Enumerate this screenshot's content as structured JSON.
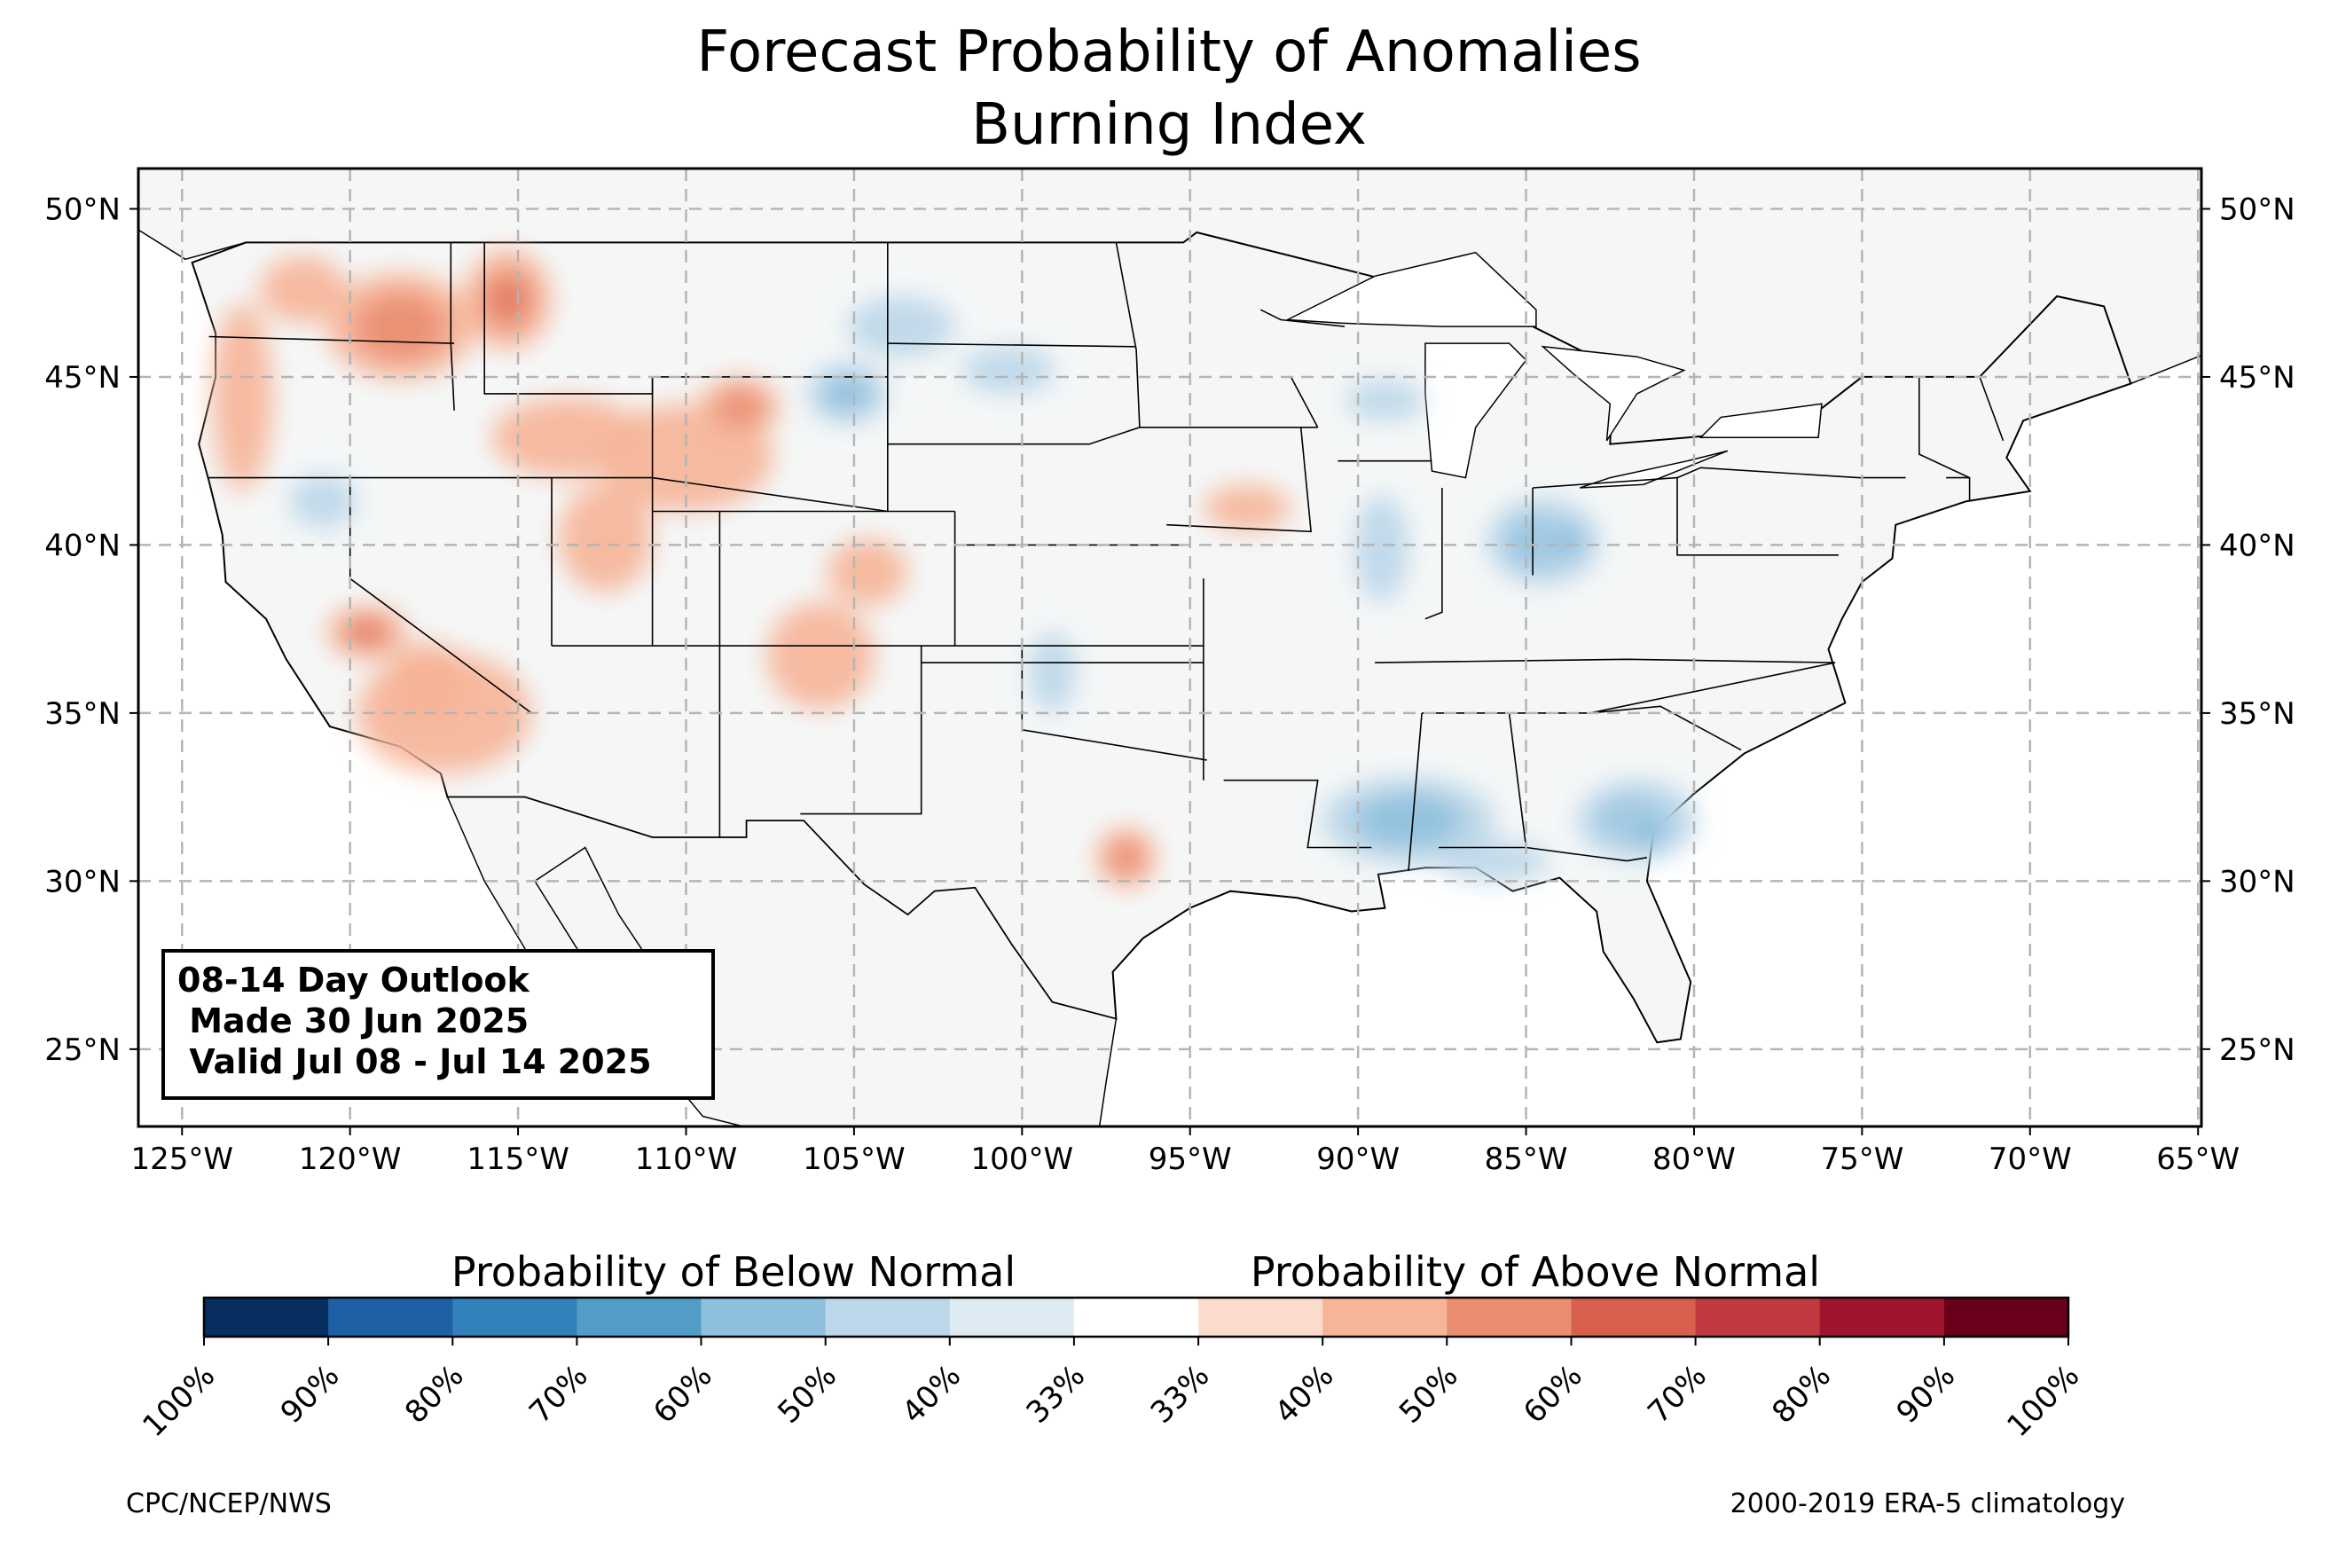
{
  "title": {
    "line1": "Forecast Probability of Anomalies",
    "line2": "Burning Index"
  },
  "map": {
    "lon_range": [
      -126.3,
      -64.9
    ],
    "lat_range": [
      22.7,
      51.2
    ],
    "lon_ticks": [
      -125,
      -120,
      -115,
      -110,
      -105,
      -100,
      -95,
      -90,
      -85,
      -80,
      -75,
      -70,
      -65
    ],
    "lon_tick_labels": [
      "125°W",
      "120°W",
      "115°W",
      "110°W",
      "105°W",
      "100°W",
      "95°W",
      "90°W",
      "85°W",
      "80°W",
      "75°W",
      "70°W",
      "65°W"
    ],
    "lat_ticks": [
      25,
      30,
      35,
      40,
      45,
      50
    ],
    "lat_tick_labels": [
      "25°N",
      "30°N",
      "35°N",
      "40°N",
      "45°N",
      "50°N"
    ],
    "gridlines": true,
    "land_color": "#f5f7f7",
    "ocean_color": "#ffffff"
  },
  "outlook_box": {
    "line1": "08-14 Day Outlook",
    "line2": " Made 30 Jun 2025",
    "line3": " Valid Jul 08 - Jul 14 2025"
  },
  "colorbar": {
    "below_label": "Probability of Below Normal",
    "above_label": "Probability of Above Normal",
    "tick_labels": [
      "100%",
      "90%",
      "80%",
      "70%",
      "60%",
      "50%",
      "40%",
      "33%",
      "33%",
      "40%",
      "50%",
      "60%",
      "70%",
      "80%",
      "90%",
      "100%"
    ],
    "colors": [
      "#062e61",
      "#1e60a4",
      "#3381bb",
      "#529dc8",
      "#8ec0dd",
      "#bcd7e9",
      "#deebf3",
      "#ffffff",
      "#fbdccc",
      "#f6b599",
      "#ea8e72",
      "#d6604d",
      "#c0393f",
      "#a0152e",
      "#670018"
    ]
  },
  "anomalies": {
    "above": [
      {
        "lon": -118.5,
        "lat": 46.5,
        "rx": 2.2,
        "ry": 1.6,
        "level": 2
      },
      {
        "lon": -115.3,
        "lat": 47.3,
        "rx": 1.3,
        "ry": 1.5,
        "level": 3
      },
      {
        "lon": -121.4,
        "lat": 47.6,
        "rx": 1.3,
        "ry": 1.0,
        "level": 1
      },
      {
        "lon": -123.2,
        "lat": 44.4,
        "rx": 0.9,
        "ry": 2.8,
        "level": 1
      },
      {
        "lon": -113.5,
        "lat": 43.2,
        "rx": 2.3,
        "ry": 1.2,
        "level": 1
      },
      {
        "lon": -110.0,
        "lat": 42.6,
        "rx": 2.6,
        "ry": 1.6,
        "level": 1
      },
      {
        "lon": -108.4,
        "lat": 44.1,
        "rx": 1.2,
        "ry": 0.9,
        "level": 2
      },
      {
        "lon": -112.4,
        "lat": 40.2,
        "rx": 1.4,
        "ry": 1.6,
        "level": 1
      },
      {
        "lon": -119.5,
        "lat": 37.4,
        "rx": 1.2,
        "ry": 0.8,
        "level": 3
      },
      {
        "lon": -117.7,
        "lat": 35.9,
        "rx": 1.3,
        "ry": 1.2,
        "level": 3
      },
      {
        "lon": -117.2,
        "lat": 35.0,
        "rx": 2.6,
        "ry": 1.8,
        "level": 1
      },
      {
        "lon": -106.0,
        "lat": 36.7,
        "rx": 1.6,
        "ry": 1.6,
        "level": 1
      },
      {
        "lon": -104.6,
        "lat": 39.2,
        "rx": 1.2,
        "ry": 1.0,
        "level": 1
      },
      {
        "lon": -96.9,
        "lat": 30.7,
        "rx": 0.9,
        "ry": 0.9,
        "level": 2
      },
      {
        "lon": -93.3,
        "lat": 41.1,
        "rx": 1.3,
        "ry": 0.7,
        "level": 1
      }
    ],
    "below": [
      {
        "lon": -105.2,
        "lat": 44.5,
        "rx": 1.2,
        "ry": 0.9,
        "level": 2
      },
      {
        "lon": -103.6,
        "lat": 46.5,
        "rx": 1.6,
        "ry": 0.9,
        "level": 1
      },
      {
        "lon": -100.4,
        "lat": 45.2,
        "rx": 1.4,
        "ry": 0.7,
        "level": 1
      },
      {
        "lon": -120.8,
        "lat": 41.3,
        "rx": 1.0,
        "ry": 0.8,
        "level": 1
      },
      {
        "lon": -89.2,
        "lat": 44.3,
        "rx": 1.2,
        "ry": 0.6,
        "level": 1
      },
      {
        "lon": -84.5,
        "lat": 40.1,
        "rx": 1.7,
        "ry": 1.3,
        "level": 2
      },
      {
        "lon": -83.8,
        "lat": 40.1,
        "rx": 0.9,
        "ry": 0.7,
        "level": 3
      },
      {
        "lon": -89.3,
        "lat": 39.9,
        "rx": 0.8,
        "ry": 1.6,
        "level": 1
      },
      {
        "lon": -88.5,
        "lat": 31.8,
        "rx": 2.6,
        "ry": 1.3,
        "level": 2
      },
      {
        "lon": -81.7,
        "lat": 31.8,
        "rx": 1.8,
        "ry": 1.2,
        "level": 2
      },
      {
        "lon": -81.4,
        "lat": 31.5,
        "rx": 0.9,
        "ry": 0.8,
        "level": 3
      },
      {
        "lon": -99.1,
        "lat": 36.2,
        "rx": 0.7,
        "ry": 1.2,
        "level": 1
      },
      {
        "lon": -86.0,
        "lat": 30.6,
        "rx": 1.7,
        "ry": 0.6,
        "level": 1
      }
    ]
  },
  "footer": {
    "left": "CPC/NCEP/NWS",
    "right": "2000-2019 ERA-5 climatology"
  }
}
